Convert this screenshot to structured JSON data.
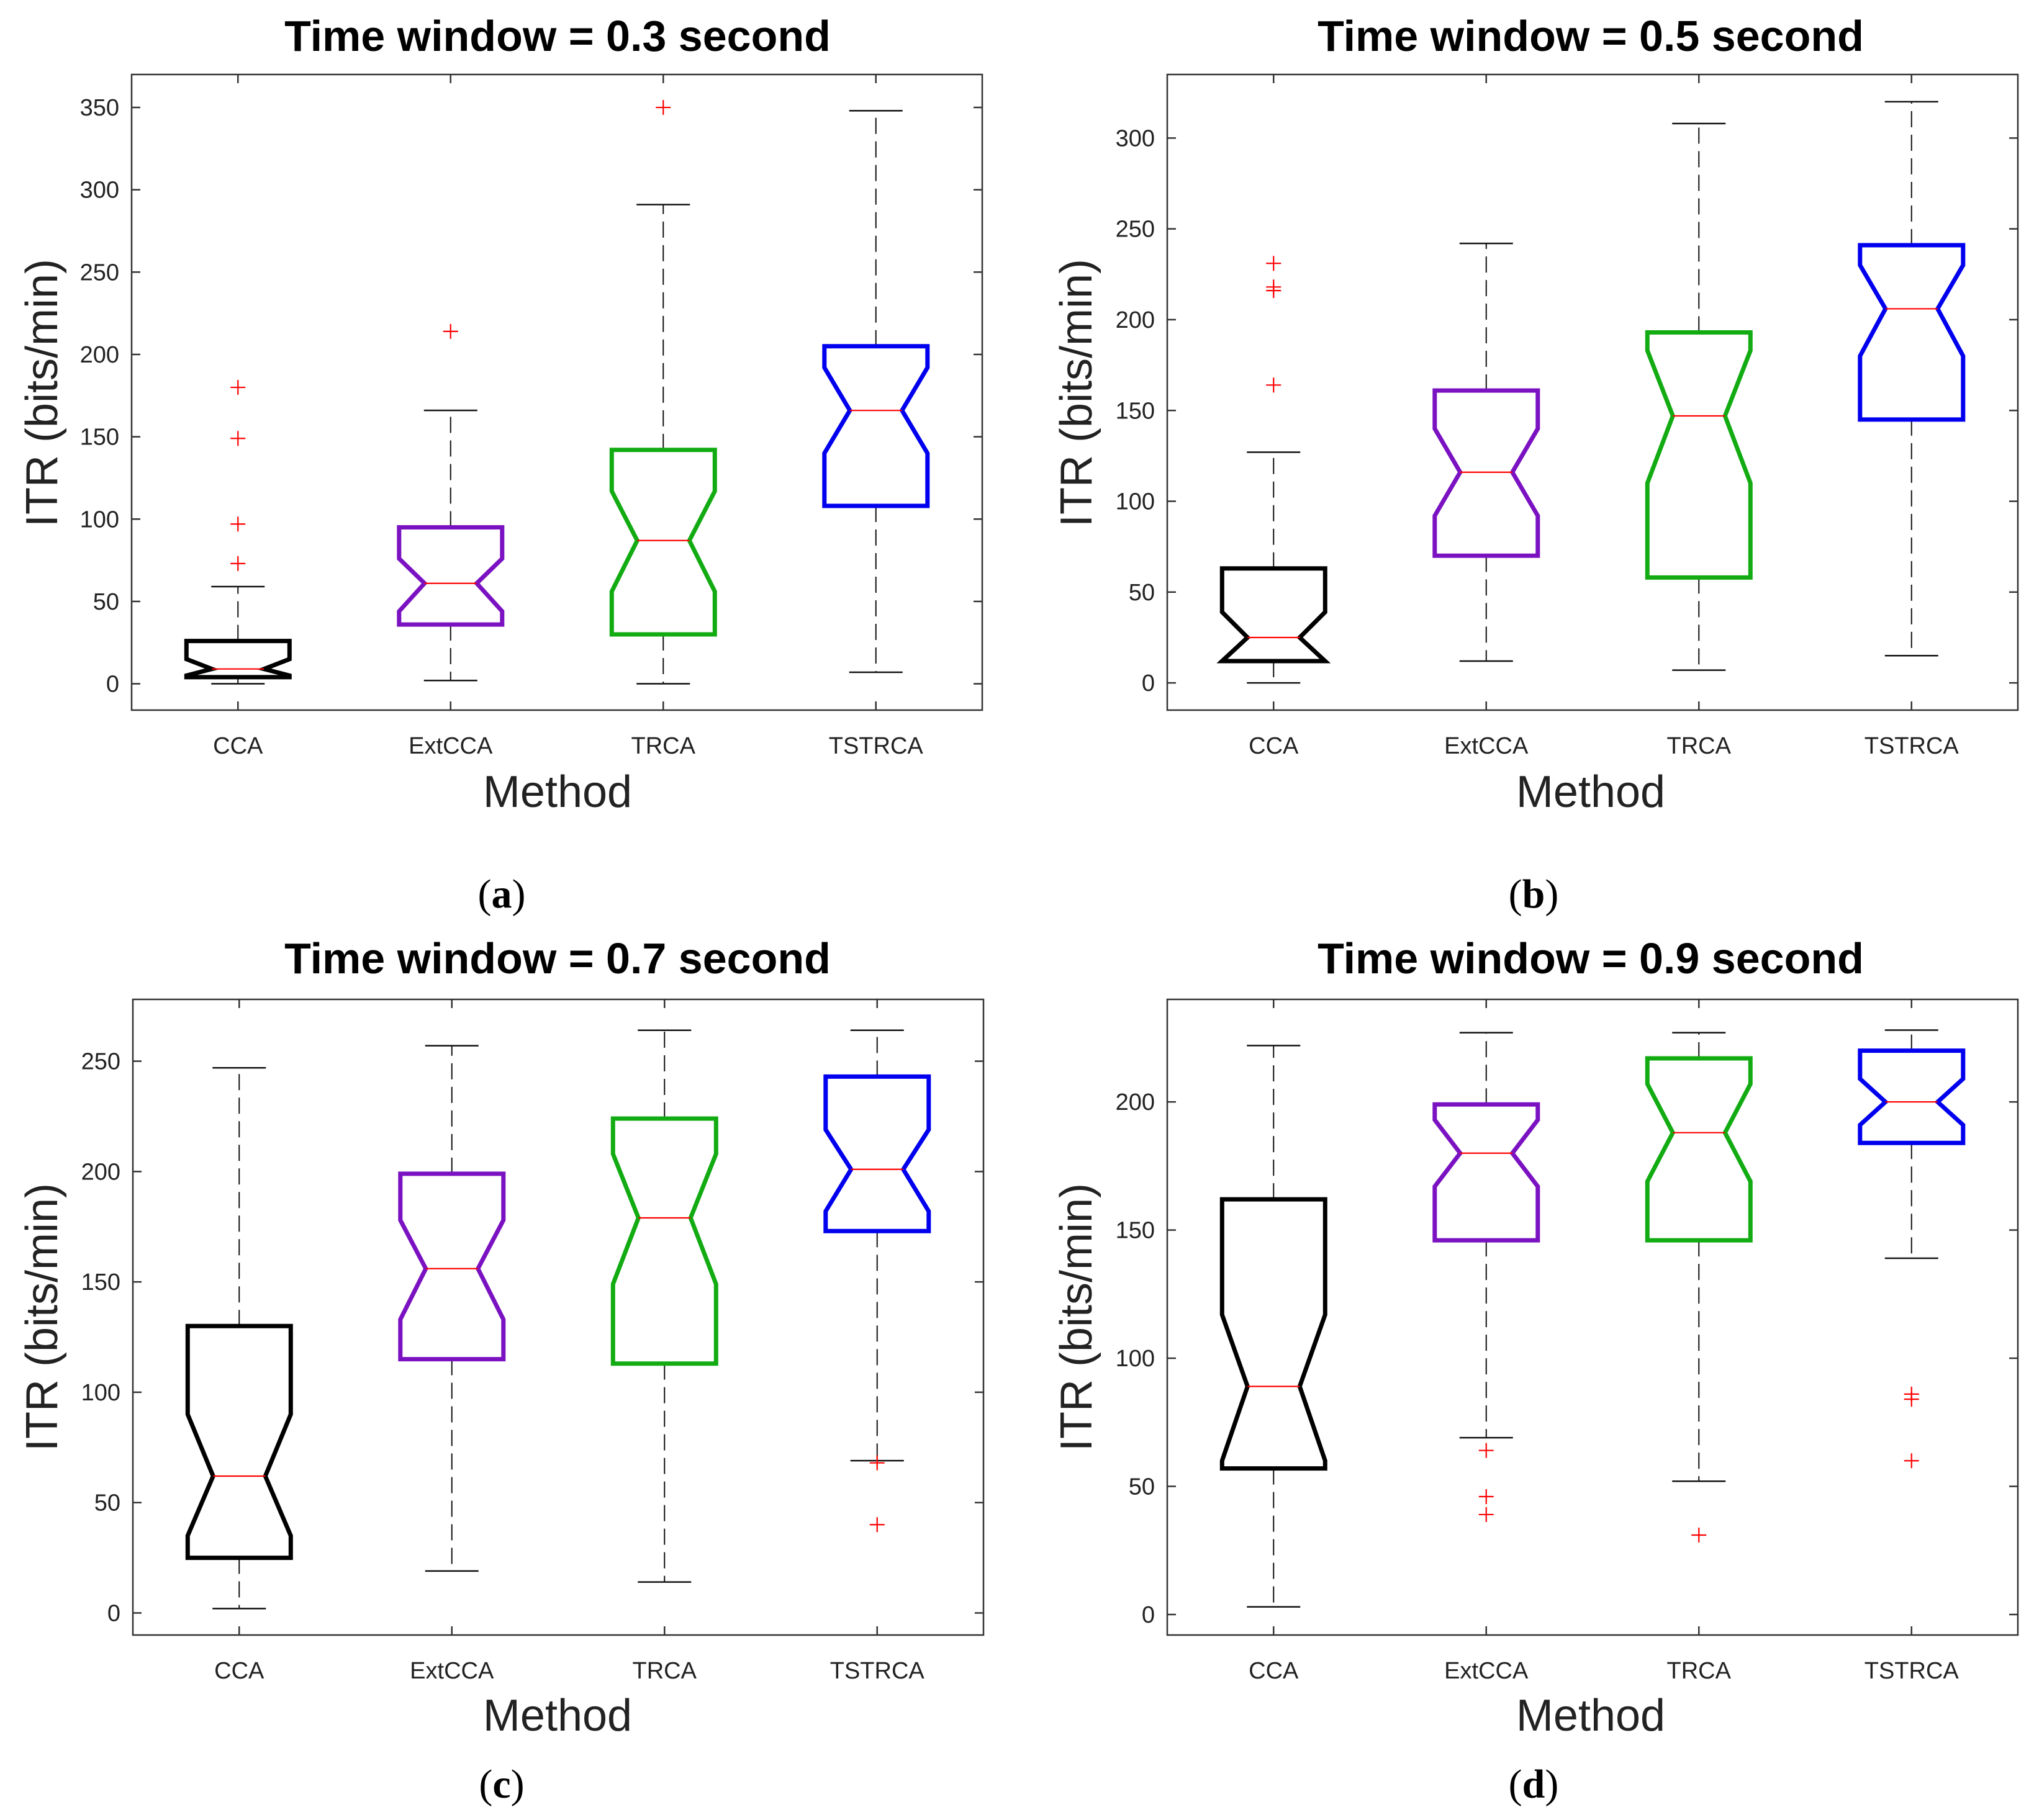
{
  "chart_data": [
    {
      "type": "boxplot",
      "panel": "a",
      "caption": "(a)",
      "title": "Time window = 0.3 second",
      "xlabel": "Method",
      "ylabel": "ITR (bits/min)",
      "categories": [
        "CCA",
        "ExtCCA",
        "TRCA",
        "TSTRCA"
      ],
      "ylim": [
        -16,
        370
      ],
      "yticks": [
        0,
        50,
        100,
        150,
        200,
        250,
        300,
        350
      ],
      "colors": [
        "#000000",
        "#7b12c2",
        "#12ab12",
        "#0000ee"
      ],
      "boxes": [
        {
          "name": "CCA",
          "whisker_low": 0,
          "q1": 4,
          "notch_low": 5,
          "median": 9,
          "notch_high": 15,
          "q3": 26,
          "whisker_high": 59,
          "outliers": [
            180,
            149,
            97,
            73
          ]
        },
        {
          "name": "ExtCCA",
          "whisker_low": 2,
          "q1": 36,
          "notch_low": 44,
          "median": 61,
          "notch_high": 76,
          "q3": 95,
          "whisker_high": 166,
          "outliers": [
            214
          ]
        },
        {
          "name": "TRCA",
          "whisker_low": 0,
          "q1": 30,
          "notch_low": 56,
          "median": 87,
          "notch_high": 117,
          "q3": 142,
          "whisker_high": 291,
          "outliers": [
            350
          ]
        },
        {
          "name": "TSTRCA",
          "whisker_low": 7,
          "q1": 108,
          "notch_low": 140,
          "median": 166,
          "notch_high": 192,
          "q3": 205,
          "whisker_high": 348,
          "outliers": []
        }
      ]
    },
    {
      "type": "boxplot",
      "panel": "b",
      "caption": "(b)",
      "title": "Time window = 0.5 second",
      "xlabel": "Method",
      "ylabel": "ITR (bits/min)",
      "categories": [
        "CCA",
        "ExtCCA",
        "TRCA",
        "TSTRCA"
      ],
      "ylim": [
        -15,
        335
      ],
      "yticks": [
        0,
        50,
        100,
        150,
        200,
        250,
        300
      ],
      "colors": [
        "#000000",
        "#7b12c2",
        "#12ab12",
        "#0000ee"
      ],
      "boxes": [
        {
          "name": "CCA",
          "whisker_low": 0,
          "q1": 12,
          "notch_low": 12,
          "median": 25,
          "notch_high": 39,
          "q3": 63,
          "whisker_high": 127,
          "outliers": [
            231,
            218,
            216,
            164
          ]
        },
        {
          "name": "ExtCCA",
          "whisker_low": 12,
          "q1": 70,
          "notch_low": 92,
          "median": 116,
          "notch_high": 140,
          "q3": 161,
          "whisker_high": 242,
          "outliers": []
        },
        {
          "name": "TRCA",
          "whisker_low": 7,
          "q1": 58,
          "notch_low": 110,
          "median": 147,
          "notch_high": 183,
          "q3": 193,
          "whisker_high": 308,
          "outliers": []
        },
        {
          "name": "TSTRCA",
          "whisker_low": 15,
          "q1": 145,
          "notch_low": 180,
          "median": 206,
          "notch_high": 230,
          "q3": 241,
          "whisker_high": 320,
          "outliers": []
        }
      ]
    },
    {
      "type": "boxplot",
      "panel": "c",
      "caption": "(c)",
      "title": "Time window = 0.7 second",
      "xlabel": "Method",
      "ylabel": "ITR (bits/min)",
      "categories": [
        "CCA",
        "ExtCCA",
        "TRCA",
        "TSTRCA"
      ],
      "ylim": [
        -10,
        278
      ],
      "yticks": [
        0,
        50,
        100,
        150,
        200,
        250
      ],
      "colors": [
        "#000000",
        "#7b12c2",
        "#12ab12",
        "#0000ee"
      ],
      "boxes": [
        {
          "name": "CCA",
          "whisker_low": 2,
          "q1": 25,
          "notch_low": 35,
          "median": 62,
          "notch_high": 90,
          "q3": 130,
          "whisker_high": 247,
          "outliers": []
        },
        {
          "name": "ExtCCA",
          "whisker_low": 19,
          "q1": 115,
          "notch_low": 133,
          "median": 156,
          "notch_high": 178,
          "q3": 199,
          "whisker_high": 257,
          "outliers": []
        },
        {
          "name": "TRCA",
          "whisker_low": 14,
          "q1": 113,
          "notch_low": 149,
          "median": 179,
          "notch_high": 208,
          "q3": 224,
          "whisker_high": 264,
          "outliers": []
        },
        {
          "name": "TSTRCA",
          "whisker_low": 69,
          "q1": 173,
          "notch_low": 182,
          "median": 201,
          "notch_high": 219,
          "q3": 243,
          "whisker_high": 264,
          "outliers": [
            68,
            40
          ]
        }
      ]
    },
    {
      "type": "boxplot",
      "panel": "d",
      "caption": "(d)",
      "title": "Time window = 0.9 second",
      "xlabel": "Method",
      "ylabel": "ITR (bits/min)",
      "categories": [
        "CCA",
        "ExtCCA",
        "TRCA",
        "TSTRCA"
      ],
      "ylim": [
        -8,
        240
      ],
      "yticks": [
        0,
        50,
        100,
        150,
        200
      ],
      "colors": [
        "#000000",
        "#7b12c2",
        "#12ab12",
        "#0000ee"
      ],
      "boxes": [
        {
          "name": "CCA",
          "whisker_low": 3,
          "q1": 57,
          "notch_low": 60,
          "median": 89,
          "notch_high": 117,
          "q3": 162,
          "whisker_high": 222,
          "outliers": []
        },
        {
          "name": "ExtCCA",
          "whisker_low": 69,
          "q1": 146,
          "notch_low": 167,
          "median": 180,
          "notch_high": 193,
          "q3": 199,
          "whisker_high": 227,
          "outliers": [
            64,
            46,
            39
          ]
        },
        {
          "name": "TRCA",
          "whisker_low": 52,
          "q1": 146,
          "notch_low": 169,
          "median": 188,
          "notch_high": 207,
          "q3": 217,
          "whisker_high": 227,
          "outliers": [
            31
          ]
        },
        {
          "name": "TSTRCA",
          "whisker_low": 139,
          "q1": 184,
          "notch_low": 191,
          "median": 200,
          "notch_high": 209,
          "q3": 220,
          "whisker_high": 228,
          "outliers": [
            86,
            84,
            60
          ]
        }
      ]
    }
  ]
}
